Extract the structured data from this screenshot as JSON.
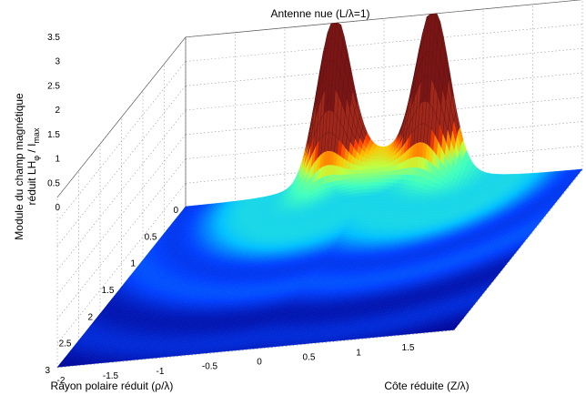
{
  "chart_data": {
    "type": "surface",
    "title": "Antenne nue (L/λ=1)",
    "xlabel": "Côte réduite (Z/λ)",
    "ylabel": "Rayon polaire réduit (ρ/λ)",
    "zlabel_line1": "Module du champ magnétique",
    "zlabel_line2": "réduit LH",
    "zlabel_sub_phi": "φ",
    "zlabel_slash": " / I",
    "zlabel_sub_max": "max",
    "x_ticks": [
      "-2",
      "-1.5",
      "-1",
      "-0.5",
      "0",
      "0.5",
      "1",
      "1.5"
    ],
    "y_ticks": [
      "0",
      "0.5",
      "1",
      "1.5",
      "2",
      "2.5",
      "3"
    ],
    "z_ticks": [
      "0",
      "0.5",
      "1",
      "1.5",
      "2",
      "2.5",
      "3",
      "3.5"
    ],
    "xlim": [
      -2,
      2
    ],
    "ylim": [
      0,
      3
    ],
    "zlim": [
      0,
      3.5
    ],
    "peaks": [
      {
        "z": -0.5,
        "rho": 0,
        "value": 3.1
      },
      {
        "z": 0.5,
        "rho": 0,
        "value": 3.1
      }
    ],
    "colormap": [
      "#00008f",
      "#0040ff",
      "#00c0ff",
      "#40ffbf",
      "#c0ff40",
      "#ffc000",
      "#ff4000",
      "#800000"
    ],
    "grid": true
  }
}
